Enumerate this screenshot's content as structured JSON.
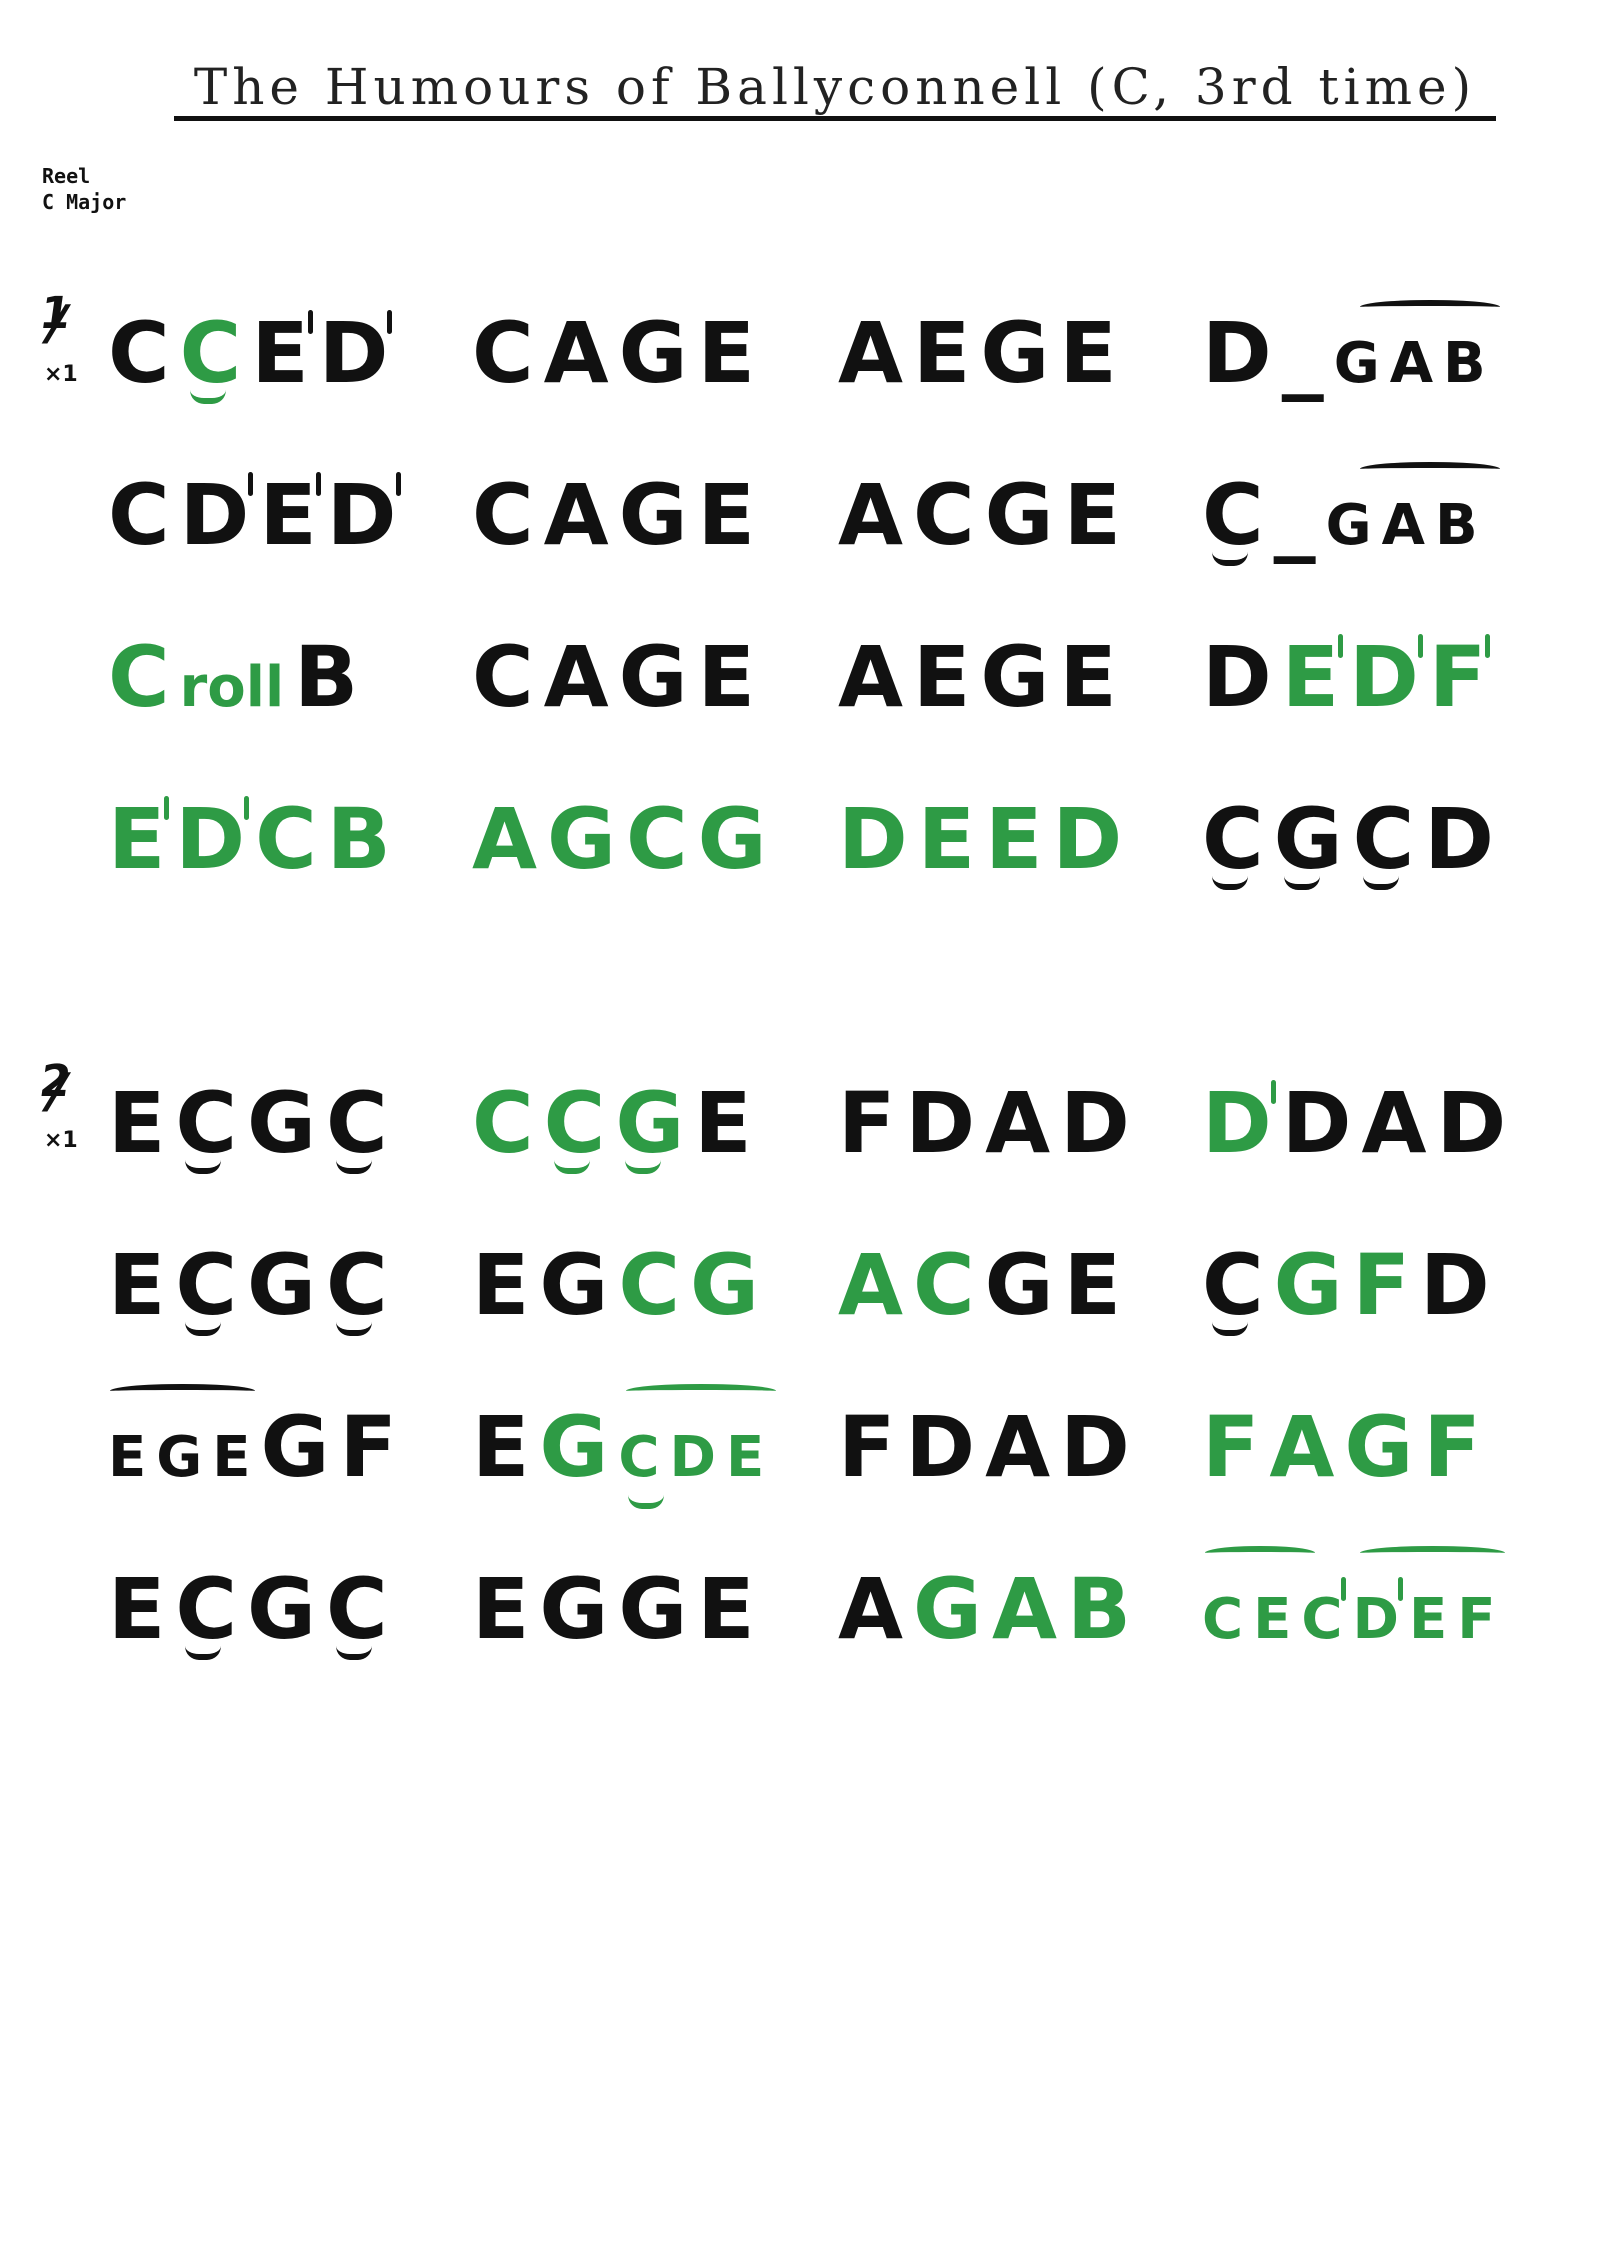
{
  "title": "The Humours of Ballyconnell (C, 3rd time)",
  "tune_type": "Reel",
  "key": "C Major",
  "colors": {
    "green": "#2e9b45",
    "black": "#111111"
  },
  "parts": [
    {
      "number": "1",
      "repeat": "×1",
      "rows": [
        [
          [
            {
              "t": "C",
              "c": "k"
            },
            {
              "t": "C",
              "c": "g",
              "low": true
            },
            {
              "t": "E",
              "c": "k",
              "tick": true
            },
            {
              "t": "D",
              "c": "k",
              "tick": true
            }
          ],
          [
            {
              "t": "C",
              "c": "k"
            },
            {
              "t": "A",
              "c": "k"
            },
            {
              "t": "G",
              "c": "k"
            },
            {
              "t": "E",
              "c": "k"
            }
          ],
          [
            {
              "t": "A",
              "c": "k"
            },
            {
              "t": "E",
              "c": "k"
            },
            {
              "t": "G",
              "c": "k"
            },
            {
              "t": "E",
              "c": "k"
            }
          ],
          [
            {
              "t": "D",
              "c": "k"
            },
            {
              "t": "_",
              "c": "k"
            },
            {
              "t": "G",
              "c": "k",
              "small": true
            },
            {
              "t": "A",
              "c": "k",
              "small": true
            },
            {
              "t": "B",
              "c": "k",
              "small": true
            }
          ]
        ],
        [
          [
            {
              "t": "C",
              "c": "k"
            },
            {
              "t": "D",
              "c": "k",
              "tick": true
            },
            {
              "t": "E",
              "c": "k",
              "tick": true
            },
            {
              "t": "D",
              "c": "k",
              "tick": true
            }
          ],
          [
            {
              "t": "C",
              "c": "k"
            },
            {
              "t": "A",
              "c": "k"
            },
            {
              "t": "G",
              "c": "k"
            },
            {
              "t": "E",
              "c": "k"
            }
          ],
          [
            {
              "t": "A",
              "c": "k"
            },
            {
              "t": "C",
              "c": "k"
            },
            {
              "t": "G",
              "c": "k"
            },
            {
              "t": "E",
              "c": "k"
            }
          ],
          [
            {
              "t": "C",
              "c": "k",
              "low": true
            },
            {
              "t": "_",
              "c": "k"
            },
            {
              "t": "G",
              "c": "k",
              "small": true
            },
            {
              "t": "A",
              "c": "k",
              "small": true
            },
            {
              "t": "B",
              "c": "k",
              "small": true
            }
          ]
        ],
        [
          [
            {
              "t": "C",
              "c": "g"
            },
            {
              "t": "roll",
              "c": "g",
              "small": true
            },
            {
              "t": "B",
              "c": "k"
            }
          ],
          [
            {
              "t": "C",
              "c": "k"
            },
            {
              "t": "A",
              "c": "k"
            },
            {
              "t": "G",
              "c": "k"
            },
            {
              "t": "E",
              "c": "k"
            }
          ],
          [
            {
              "t": "A",
              "c": "k"
            },
            {
              "t": "E",
              "c": "k"
            },
            {
              "t": "G",
              "c": "k"
            },
            {
              "t": "E",
              "c": "k"
            }
          ],
          [
            {
              "t": "D",
              "c": "k"
            },
            {
              "t": "E",
              "c": "g",
              "tick": true
            },
            {
              "t": "D",
              "c": "g",
              "tick": true
            },
            {
              "t": "F",
              "c": "g",
              "tick": true
            }
          ]
        ],
        [
          [
            {
              "t": "E",
              "c": "g",
              "tick": true
            },
            {
              "t": "D",
              "c": "g",
              "tick": true
            },
            {
              "t": "C",
              "c": "g"
            },
            {
              "t": "B",
              "c": "g"
            }
          ],
          [
            {
              "t": "A",
              "c": "g"
            },
            {
              "t": "G",
              "c": "g"
            },
            {
              "t": "C",
              "c": "g"
            },
            {
              "t": "G",
              "c": "g"
            }
          ],
          [
            {
              "t": "D",
              "c": "g"
            },
            {
              "t": "E",
              "c": "g"
            },
            {
              "t": "E",
              "c": "g"
            },
            {
              "t": "D",
              "c": "g"
            }
          ],
          [
            {
              "t": "C",
              "c": "k",
              "low": true
            },
            {
              "t": "G",
              "c": "k",
              "low": true
            },
            {
              "t": "C",
              "c": "k",
              "low": true
            },
            {
              "t": "D",
              "c": "k"
            }
          ]
        ]
      ]
    },
    {
      "number": "2",
      "repeat": "×1",
      "rows": [
        [
          [
            {
              "t": "E",
              "c": "k"
            },
            {
              "t": "C",
              "c": "k",
              "low": true
            },
            {
              "t": "G",
              "c": "k"
            },
            {
              "t": "C",
              "c": "k",
              "low": true
            }
          ],
          [
            {
              "t": "C",
              "c": "g"
            },
            {
              "t": "C",
              "c": "g",
              "low": true
            },
            {
              "t": "G",
              "c": "g",
              "low": true
            },
            {
              "t": "E",
              "c": "k"
            }
          ],
          [
            {
              "t": "F",
              "c": "k"
            },
            {
              "t": "D",
              "c": "k"
            },
            {
              "t": "A",
              "c": "k"
            },
            {
              "t": "D",
              "c": "k"
            }
          ],
          [
            {
              "t": "D",
              "c": "g",
              "tick": true
            },
            {
              "t": "D",
              "c": "k"
            },
            {
              "t": "A",
              "c": "k"
            },
            {
              "t": "D",
              "c": "k"
            }
          ]
        ],
        [
          [
            {
              "t": "E",
              "c": "k"
            },
            {
              "t": "C",
              "c": "k",
              "low": true
            },
            {
              "t": "G",
              "c": "k"
            },
            {
              "t": "C",
              "c": "k",
              "low": true
            }
          ],
          [
            {
              "t": "E",
              "c": "k"
            },
            {
              "t": "G",
              "c": "k"
            },
            {
              "t": "C",
              "c": "g"
            },
            {
              "t": "G",
              "c": "g"
            }
          ],
          [
            {
              "t": "A",
              "c": "g"
            },
            {
              "t": "C",
              "c": "g"
            },
            {
              "t": "G",
              "c": "k"
            },
            {
              "t": "E",
              "c": "k"
            }
          ],
          [
            {
              "t": "C",
              "c": "k",
              "low": true
            },
            {
              "t": "G",
              "c": "g"
            },
            {
              "t": "F",
              "c": "g"
            },
            {
              "t": "D",
              "c": "k"
            }
          ]
        ],
        [
          [
            {
              "t": "E",
              "c": "k",
              "small": true
            },
            {
              "t": "G",
              "c": "k",
              "small": true
            },
            {
              "t": "E",
              "c": "k",
              "small": true
            },
            {
              "t": "G",
              "c": "k"
            },
            {
              "t": "F",
              "c": "k"
            }
          ],
          [
            {
              "t": "E",
              "c": "k"
            },
            {
              "t": "G",
              "c": "g"
            },
            {
              "t": "C",
              "c": "g",
              "small": true,
              "low": true
            },
            {
              "t": "D",
              "c": "g",
              "small": true
            },
            {
              "t": "E",
              "c": "g",
              "small": true
            }
          ],
          [
            {
              "t": "F",
              "c": "k"
            },
            {
              "t": "D",
              "c": "k"
            },
            {
              "t": "A",
              "c": "k"
            },
            {
              "t": "D",
              "c": "k"
            }
          ],
          [
            {
              "t": "F",
              "c": "g"
            },
            {
              "t": "A",
              "c": "g"
            },
            {
              "t": "G",
              "c": "g"
            },
            {
              "t": "F",
              "c": "g"
            }
          ]
        ],
        [
          [
            {
              "t": "E",
              "c": "k"
            },
            {
              "t": "C",
              "c": "k",
              "low": true
            },
            {
              "t": "G",
              "c": "k"
            },
            {
              "t": "C",
              "c": "k",
              "low": true
            }
          ],
          [
            {
              "t": "E",
              "c": "k"
            },
            {
              "t": "G",
              "c": "k"
            },
            {
              "t": "G",
              "c": "k"
            },
            {
              "t": "E",
              "c": "k"
            }
          ],
          [
            {
              "t": "A",
              "c": "k"
            },
            {
              "t": "G",
              "c": "g"
            },
            {
              "t": "A",
              "c": "g"
            },
            {
              "t": "B",
              "c": "g"
            }
          ],
          [
            {
              "t": "C",
              "c": "g",
              "small": true
            },
            {
              "t": "E",
              "c": "g",
              "small": true
            },
            {
              "t": "C",
              "c": "g",
              "small": true,
              "tick": true
            },
            {
              "t": "D",
              "c": "g",
              "small": true,
              "tick": true
            },
            {
              "t": "E",
              "c": "g",
              "small": true
            },
            {
              "t": "F",
              "c": "g",
              "small": true
            }
          ]
        ]
      ]
    }
  ]
}
